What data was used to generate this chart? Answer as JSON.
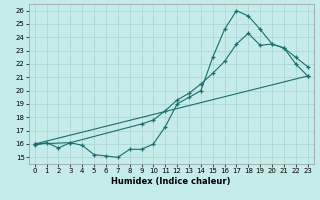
{
  "xlabel": "Humidex (Indice chaleur)",
  "bg_color": "#c5ece8",
  "grid_color": "#aad8d4",
  "line_color": "#1a6e6e",
  "xlim": [
    -0.5,
    23.5
  ],
  "ylim": [
    14.5,
    26.5
  ],
  "xticks": [
    0,
    1,
    2,
    3,
    4,
    5,
    6,
    7,
    8,
    9,
    10,
    11,
    12,
    13,
    14,
    15,
    16,
    17,
    18,
    19,
    20,
    21,
    22,
    23
  ],
  "yticks": [
    15,
    16,
    17,
    18,
    19,
    20,
    21,
    22,
    23,
    24,
    25,
    26
  ],
  "line1_x": [
    0,
    1,
    2,
    3,
    4,
    5,
    6,
    7,
    8,
    9,
    10,
    11,
    12,
    13,
    14,
    15,
    16,
    17,
    18,
    19,
    20,
    21,
    22,
    23
  ],
  "line1_y": [
    15.9,
    16.1,
    15.7,
    16.1,
    15.9,
    15.2,
    15.1,
    15.0,
    15.6,
    15.6,
    16.0,
    17.3,
    19.0,
    19.5,
    20.0,
    22.5,
    24.6,
    26.0,
    25.6,
    24.6,
    23.5,
    23.2,
    22.5,
    21.8
  ],
  "line2_x": [
    0,
    3,
    9,
    10,
    11,
    12,
    13,
    14,
    15,
    16,
    17,
    18,
    19,
    20,
    21,
    22,
    23
  ],
  "line2_y": [
    16.0,
    16.1,
    17.5,
    17.8,
    18.5,
    19.3,
    19.8,
    20.5,
    21.3,
    22.2,
    23.5,
    24.3,
    23.4,
    23.5,
    23.2,
    22.0,
    21.1
  ],
  "line3_x": [
    0,
    23
  ],
  "line3_y": [
    16.0,
    21.1
  ]
}
